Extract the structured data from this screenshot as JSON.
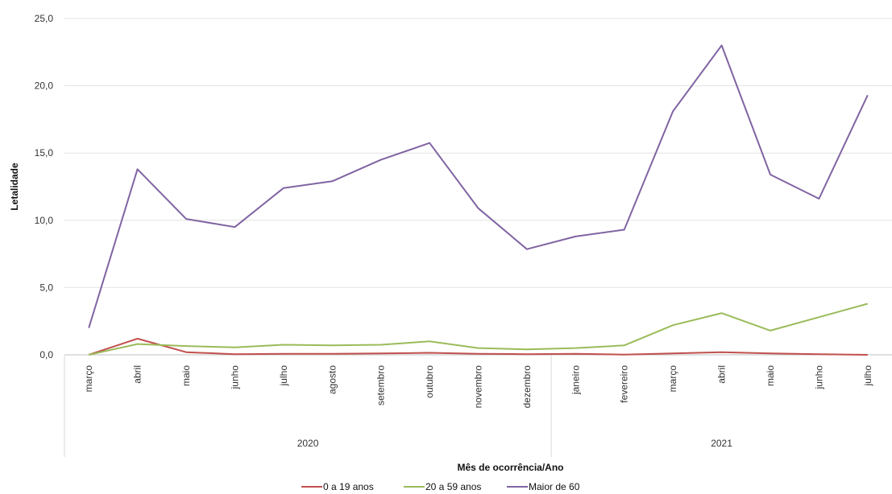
{
  "chart_data": {
    "type": "line",
    "ylabel": "Letalidade",
    "xlabel": "Mês de ocorrência/Ano",
    "ylim": [
      0,
      25
    ],
    "yticks": [
      "0,0",
      "5,0",
      "10,0",
      "15,0",
      "20,0",
      "25,0"
    ],
    "grid": true,
    "legend_position": "bottom",
    "categories": [
      "março",
      "abril",
      "maio",
      "junho",
      "julho",
      "agosto",
      "setembro",
      "outubro",
      "novembro",
      "dezembro",
      "janeiro",
      "fevereiro",
      "março",
      "abril",
      "maio",
      "junho",
      "julho"
    ],
    "groups": [
      {
        "label": "2020",
        "count": 10
      },
      {
        "label": "2021",
        "count": 7
      }
    ],
    "series": [
      {
        "name": "0 a 19 anos",
        "color": "#c0504d",
        "values": [
          0.0,
          1.2,
          0.2,
          0.05,
          0.08,
          0.08,
          0.1,
          0.15,
          0.08,
          0.05,
          0.08,
          0.02,
          0.1,
          0.2,
          0.1,
          0.05,
          0.0
        ]
      },
      {
        "name": "20 a 59 anos",
        "color": "#9bbb59",
        "values": [
          0.0,
          0.8,
          0.65,
          0.55,
          0.75,
          0.7,
          0.75,
          1.0,
          0.5,
          0.4,
          0.5,
          0.7,
          2.2,
          3.1,
          1.8,
          2.8,
          3.8
        ]
      },
      {
        "name": "Maior de 60",
        "color": "#8064a2",
        "values": [
          2.0,
          13.8,
          10.1,
          9.5,
          12.4,
          12.9,
          14.5,
          15.75,
          10.9,
          7.85,
          8.8,
          9.3,
          18.1,
          23.0,
          13.4,
          11.6,
          19.3
        ]
      }
    ]
  }
}
